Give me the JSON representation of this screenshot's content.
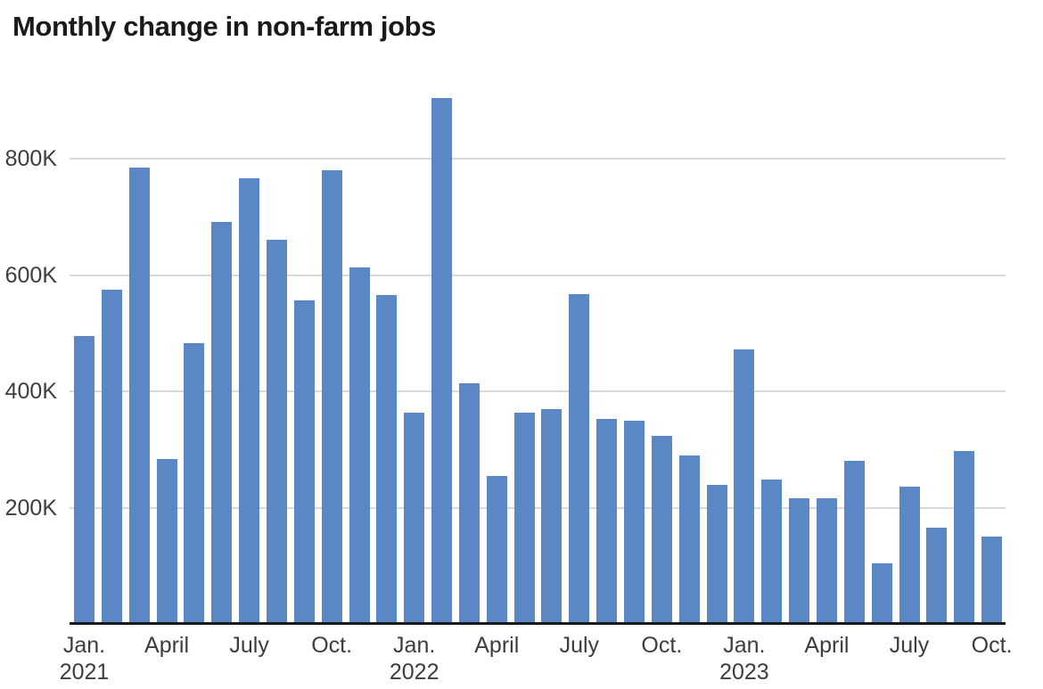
{
  "chart_data": {
    "type": "bar",
    "title": "Monthly change in non-farm jobs",
    "xlabel": "",
    "ylabel": "",
    "unit": "jobs (thousands)",
    "categories": [
      "Jan. 2021",
      "Feb. 2021",
      "March 2021",
      "April 2021",
      "May 2021",
      "June 2021",
      "July 2021",
      "Aug. 2021",
      "Sept. 2021",
      "Oct. 2021",
      "Nov. 2021",
      "Dec. 2021",
      "Jan. 2022",
      "Feb. 2022",
      "March 2022",
      "April 2022",
      "May 2022",
      "June 2022",
      "July 2022",
      "Aug. 2022",
      "Sept. 2022",
      "Oct. 2022",
      "Nov. 2022",
      "Dec. 2022",
      "Jan. 2023",
      "Feb. 2023",
      "March 2023",
      "April 2023",
      "May 2023",
      "June 2023",
      "July 2023",
      "Aug. 2023",
      "Sept. 2023",
      "Oct. 2023"
    ],
    "values": [
      495,
      575,
      785,
      284,
      483,
      691,
      767,
      661,
      556,
      780,
      613,
      566,
      364,
      904,
      414,
      254,
      364,
      370,
      568,
      352,
      350,
      324,
      290,
      239,
      472,
      248,
      217,
      217,
      281,
      105,
      236,
      165,
      297,
      150
    ],
    "values_unit": "K",
    "ylim": [
      0,
      920
    ],
    "grid": "horizontal",
    "legend": "none",
    "yticks": [
      {
        "value": 200,
        "label": "200K"
      },
      {
        "value": 400,
        "label": "400K"
      },
      {
        "value": 600,
        "label": "600K"
      },
      {
        "value": 800,
        "label": "800K"
      }
    ],
    "xticks": [
      {
        "index": 0,
        "label": "Jan.",
        "year": "2021"
      },
      {
        "index": 3,
        "label": "April"
      },
      {
        "index": 6,
        "label": "July"
      },
      {
        "index": 9,
        "label": "Oct."
      },
      {
        "index": 12,
        "label": "Jan.",
        "year": "2022"
      },
      {
        "index": 15,
        "label": "April"
      },
      {
        "index": 18,
        "label": "July"
      },
      {
        "index": 21,
        "label": "Oct."
      },
      {
        "index": 24,
        "label": "Jan.",
        "year": "2023"
      },
      {
        "index": 27,
        "label": "April"
      },
      {
        "index": 30,
        "label": "July"
      },
      {
        "index": 33,
        "label": "Oct."
      }
    ],
    "colors": {
      "bar": "#5b88c5",
      "gridline": "#d9d9d9",
      "axis_line": "#1a1a1a",
      "title_text": "#1a1a1a",
      "tick_text": "#3d3d3d",
      "background": "#ffffff"
    }
  }
}
